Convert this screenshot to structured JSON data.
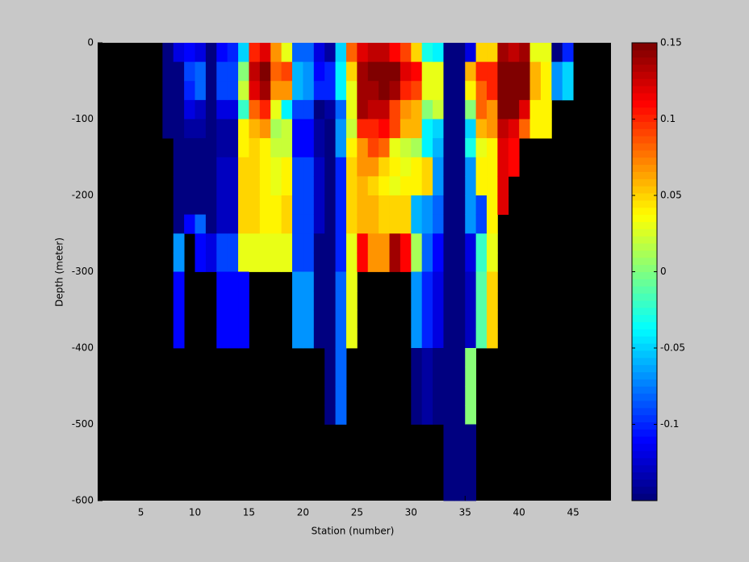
{
  "chart_data": {
    "type": "heatmap",
    "xlabel": "Station (number)",
    "ylabel": "Depth (meter)",
    "xlim": [
      1,
      48.5
    ],
    "xticks": [
      5,
      10,
      15,
      20,
      25,
      30,
      35,
      40,
      45
    ],
    "ylim": [
      -600,
      0
    ],
    "yticks": [
      -600,
      -500,
      -400,
      -300,
      -200,
      -100,
      0
    ],
    "clim": [
      -0.15,
      0.15
    ],
    "cticks": [
      -0.1,
      -0.05,
      0,
      0.05,
      0.1,
      0.15
    ],
    "colormap": "jet",
    "background": "#000000",
    "x": [
      7,
      8,
      9,
      10,
      11,
      12,
      13,
      14,
      15,
      16,
      17,
      18,
      19,
      20,
      21,
      22,
      23,
      24,
      25,
      26,
      27,
      28,
      29,
      30,
      31,
      32,
      33,
      34,
      35,
      36,
      37,
      38,
      39,
      40,
      41,
      42,
      43,
      44,
      45
    ],
    "y": [
      0,
      -25,
      -50,
      -75,
      -100,
      -125,
      -150,
      -175,
      -200,
      -225,
      -250,
      -275,
      -300,
      -325,
      -350,
      -375,
      -400,
      -425,
      -450,
      -475,
      -500,
      -525,
      -550,
      -575,
      -600
    ],
    "z": [
      [
        -0.15,
        -0.15,
        -0.15,
        -0.15,
        -0.15
      ],
      [
        -0.12,
        -0.15,
        -0.15,
        -0.15,
        -0.15,
        -0.15,
        -0.15,
        -0.15,
        -0.15,
        -0.15,
        -0.07,
        -0.07,
        -0.11,
        -0.11,
        -0.11,
        -0.11
      ],
      [
        -0.11,
        -0.09,
        -0.1,
        -0.12,
        -0.14,
        -0.15,
        -0.15,
        -0.15,
        -0.15,
        -0.11
      ],
      [
        -0.12,
        -0.08,
        -0.08,
        -0.13,
        -0.14,
        -0.15,
        -0.15,
        -0.15,
        -0.15,
        -0.08,
        -0.11,
        -0.11
      ],
      [
        -0.15,
        -0.15,
        -0.15,
        -0.15,
        -0.15,
        -0.15,
        -0.15,
        -0.15,
        -0.15,
        -0.15,
        -0.12,
        -0.12
      ],
      [
        -0.11,
        -0.09,
        -0.09,
        -0.12,
        -0.14,
        -0.14,
        -0.13,
        -0.13,
        -0.13,
        -0.13,
        -0.09,
        -0.09,
        -0.11,
        -0.11,
        -0.11,
        -0.11
      ],
      [
        -0.1,
        -0.09,
        -0.09,
        -0.12,
        -0.14,
        -0.14,
        -0.13,
        -0.13,
        -0.13,
        -0.13,
        -0.09,
        -0.09,
        -0.11,
        -0.11,
        -0.11,
        -0.11
      ],
      [
        -0.05,
        0,
        0.02,
        -0.02,
        0.04,
        0.04,
        0.05,
        0.05,
        0.05,
        0.05,
        0.03,
        0.03,
        -0.11,
        -0.11,
        -0.11,
        -0.11
      ],
      [
        0.1,
        0.13,
        0.12,
        0.08,
        0.06,
        0.05,
        0.05,
        0.05,
        0.05,
        0.05,
        0.03,
        0.03
      ],
      [
        0.12,
        0.15,
        0.14,
        0.1,
        0.07,
        0.04,
        0.04,
        0.04,
        0.04,
        0.04,
        0.03,
        0.03
      ],
      [
        0.07,
        0.08,
        0.07,
        0.03,
        0.01,
        0.02,
        0.03,
        0.03,
        0.04,
        0.04,
        0.03,
        0.03
      ],
      [
        0.03,
        0.09,
        0.07,
        -0.04,
        0.02,
        0.02,
        0.04,
        0.04,
        0.05,
        0.05,
        0.03,
        0.03
      ],
      [
        -0.08,
        -0.06,
        -0.06,
        -0.09,
        -0.11,
        -0.11,
        -0.09,
        -0.09,
        -0.09,
        -0.09,
        -0.09,
        -0.09,
        -0.07,
        -0.07,
        -0.07,
        -0.07
      ],
      [
        -0.08,
        -0.07,
        -0.07,
        -0.09,
        -0.11,
        -0.11,
        -0.09,
        -0.09,
        -0.09,
        -0.09,
        -0.09,
        -0.09,
        -0.07,
        -0.07,
        -0.07,
        -0.07
      ],
      [
        -0.12,
        -0.11,
        -0.1,
        -0.15,
        -0.14,
        -0.14,
        -0.13,
        -0.13,
        -0.13,
        -0.13,
        -0.15,
        -0.15,
        -0.15,
        -0.15,
        -0.15,
        -0.15
      ],
      [
        -0.14,
        -0.1,
        -0.1,
        -0.14,
        -0.15,
        -0.15,
        -0.15,
        -0.15,
        -0.15,
        -0.15,
        -0.15,
        -0.15,
        -0.15,
        -0.15,
        -0.15,
        -0.15,
        -0.15,
        -0.15,
        -0.15,
        -0.15
      ],
      [
        -0.05,
        -0.04,
        -0.04,
        -0.08,
        -0.07,
        -0.07,
        -0.1,
        -0.1,
        -0.1,
        -0.1,
        -0.1,
        -0.1,
        -0.08,
        -0.08,
        -0.08,
        -0.08,
        -0.08,
        -0.08,
        -0.08,
        -0.08
      ],
      [
        0.08,
        0.05,
        0.03,
        0.03,
        0.02,
        0.04,
        0.05,
        0.05,
        0.05,
        0.05,
        0.03,
        0.03,
        0.03,
        0.03,
        0.03,
        0.03
      ],
      [
        0.12,
        0.14,
        0.14,
        0.14,
        0.1,
        0.07,
        0.07,
        0.06,
        0.06,
        0.06,
        0.11,
        0.11
      ],
      [
        0.13,
        0.15,
        0.14,
        0.13,
        0.1,
        0.09,
        0.07,
        0.05,
        0.06,
        0.06,
        0.07,
        0.07
      ],
      [
        0.13,
        0.15,
        0.15,
        0.13,
        0.11,
        0.08,
        0.05,
        0.04,
        0.05,
        0.05,
        0.07,
        0.07
      ],
      [
        0.11,
        0.15,
        0.14,
        0.09,
        0.09,
        0.03,
        0.04,
        0.03,
        0.05,
        0.05,
        0.14,
        0.14
      ],
      [
        0.09,
        0.12,
        0.1,
        0.07,
        0.06,
        0.02,
        0.03,
        0.04,
        0.05,
        0.05,
        0.11,
        0.11
      ],
      [
        0.05,
        0.11,
        0.09,
        0.06,
        0.06,
        0.01,
        0.04,
        0.04,
        -0.06,
        -0.06,
        0.01,
        0.01,
        -0.07,
        -0.07,
        -0.07,
        -0.07,
        -0.15,
        -0.15,
        -0.15,
        -0.15
      ],
      [
        -0.03,
        0.03,
        0.03,
        0,
        -0.04,
        -0.04,
        0.05,
        0.05,
        -0.07,
        -0.07,
        -0.08,
        -0.08,
        -0.1,
        -0.1,
        -0.1,
        -0.1,
        -0.14,
        -0.14,
        -0.14,
        -0.14
      ],
      [
        -0.04,
        0.03,
        0.03,
        0.02,
        -0.05,
        -0.06,
        -0.07,
        -0.07,
        -0.08,
        -0.08,
        -0.11,
        -0.11,
        -0.12,
        -0.12,
        -0.12,
        -0.12,
        -0.15,
        -0.15,
        -0.15,
        -0.15
      ],
      [
        -0.15,
        -0.15,
        -0.15,
        -0.15,
        -0.15,
        -0.15,
        -0.15,
        -0.15,
        -0.15,
        -0.15,
        -0.15,
        -0.15,
        -0.15,
        -0.15,
        -0.15,
        -0.15,
        -0.15,
        -0.15,
        -0.15,
        -0.15,
        -0.15,
        -0.15,
        -0.15,
        -0.15
      ],
      [
        -0.15,
        -0.15,
        -0.15,
        -0.15,
        -0.15,
        -0.15,
        -0.15,
        -0.15,
        -0.15,
        -0.15,
        -0.15,
        -0.15,
        -0.15,
        -0.15,
        -0.15,
        -0.15,
        -0.15,
        -0.15,
        -0.15,
        -0.15,
        -0.15,
        -0.15,
        -0.15,
        -0.15
      ],
      [
        -0.12,
        0.06,
        0.04,
        0,
        -0.05,
        -0.03,
        -0.07,
        -0.07,
        -0.07,
        -0.07,
        -0.12,
        -0.12,
        -0.13,
        -0.13,
        -0.13,
        -0.13,
        0,
        0,
        0,
        0,
        -0.15,
        -0.15,
        -0.15,
        -0.15
      ],
      [
        0.05,
        0.1,
        0.08,
        0.08,
        0.06,
        0.03,
        0.04,
        0.04,
        -0.09,
        -0.09,
        -0.02,
        -0.02,
        -0.01,
        -0.01,
        -0.01,
        -0.01
      ],
      [
        0.05,
        0.1,
        0.1,
        0.07,
        0.07,
        0.04,
        0.04,
        0.04,
        0.04,
        0.04,
        0.03,
        0.03,
        0.05,
        0.05,
        0.05,
        0.05
      ],
      [
        0.14,
        0.15,
        0.15,
        0.15,
        0.13,
        0.12,
        0.12,
        0.12,
        0.12
      ],
      [
        0.13,
        0.15,
        0.15,
        0.15,
        0.12,
        0.11,
        0.11
      ],
      [
        0.14,
        0.15,
        0.15,
        0.12,
        0.08
      ],
      [
        0.03,
        0.06,
        0.06,
        0.04,
        0.04
      ],
      [
        0.03,
        0.04,
        0.04,
        0.04,
        0.04
      ],
      [
        -0.15,
        -0.07,
        -0.07
      ],
      [
        -0.1,
        -0.05,
        -0.05
      ]
    ]
  }
}
